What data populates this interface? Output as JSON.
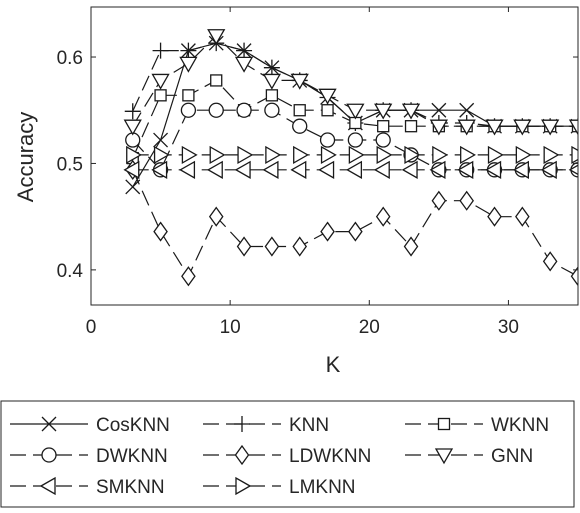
{
  "chart_data": {
    "type": "line",
    "title": "",
    "xlabel": "K",
    "ylabel": "Accuracy",
    "xlim": [
      0,
      35
    ],
    "ylim": [
      0.367,
      0.647
    ],
    "xticks": [
      0,
      10,
      20,
      30
    ],
    "yticks": [
      0.4,
      0.5,
      0.6
    ],
    "xtick_labels": [
      "0",
      "10",
      "20",
      "30"
    ],
    "ytick_labels": [
      "0.4",
      "0.5",
      "0.6"
    ],
    "grid": false,
    "legend_position": "bottom",
    "legend_columns": 3,
    "x": [
      3,
      5,
      7,
      9,
      11,
      13,
      15,
      17,
      19,
      21,
      23,
      25,
      27,
      29,
      31,
      33,
      35
    ],
    "series": [
      {
        "name": "CosKNN",
        "marker": "x",
        "line": "solid",
        "values": [
          0.478,
          0.522,
          0.606,
          0.613,
          0.606,
          0.59,
          0.578,
          0.562,
          0.538,
          0.55,
          0.55,
          0.55,
          0.55,
          0.535,
          0.535,
          0.535,
          0.535
        ]
      },
      {
        "name": "KNN",
        "marker": "plus",
        "line": "dashed",
        "values": [
          0.549,
          0.606,
          0.606,
          0.613,
          0.606,
          0.59,
          0.578,
          0.562,
          0.538,
          0.55,
          0.55,
          0.538,
          0.538,
          0.535,
          0.535,
          0.535,
          0.535
        ]
      },
      {
        "name": "WKNN",
        "marker": "square",
        "line": "dashed",
        "values": [
          0.505,
          0.564,
          0.564,
          0.578,
          0.55,
          0.564,
          0.55,
          0.55,
          0.538,
          0.535,
          0.535,
          0.535,
          0.535,
          0.535,
          0.535,
          0.535,
          0.535
        ]
      },
      {
        "name": "DWKNN",
        "marker": "circle",
        "line": "dashed",
        "values": [
          0.522,
          0.494,
          0.55,
          0.55,
          0.55,
          0.55,
          0.535,
          0.522,
          0.522,
          0.522,
          0.508,
          0.494,
          0.494,
          0.494,
          0.494,
          0.494,
          0.494
        ]
      },
      {
        "name": "LDWKNN",
        "marker": "diamond",
        "line": "dashed",
        "values": [
          0.494,
          0.436,
          0.394,
          0.45,
          0.422,
          0.422,
          0.422,
          0.436,
          0.436,
          0.45,
          0.422,
          0.465,
          0.465,
          0.45,
          0.45,
          0.408,
          0.394
        ]
      },
      {
        "name": "GNN",
        "marker": "triangle-down",
        "line": "dashed",
        "values": [
          0.535,
          0.578,
          0.594,
          0.62,
          0.594,
          0.578,
          0.578,
          0.564,
          0.55,
          0.55,
          0.55,
          0.535,
          0.535,
          0.535,
          0.535,
          0.535,
          0.535
        ]
      },
      {
        "name": "SMKNN",
        "marker": "triangle-left",
        "line": "dashed",
        "values": [
          0.494,
          0.494,
          0.494,
          0.494,
          0.494,
          0.494,
          0.494,
          0.494,
          0.494,
          0.494,
          0.494,
          0.494,
          0.494,
          0.494,
          0.494,
          0.494,
          0.494
        ]
      },
      {
        "name": "LMKNN",
        "marker": "triangle-right",
        "line": "dashed",
        "values": [
          0.508,
          0.508,
          0.508,
          0.508,
          0.508,
          0.508,
          0.508,
          0.508,
          0.508,
          0.508,
          0.508,
          0.508,
          0.508,
          0.508,
          0.508,
          0.508,
          0.508
        ]
      }
    ]
  }
}
